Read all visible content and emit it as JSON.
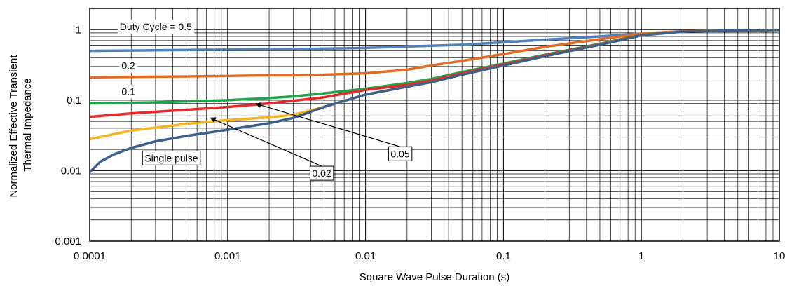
{
  "chart_data": {
    "type": "line",
    "title": "",
    "xlabel": "Square Wave Pulse Duration (s)",
    "ylabel_lines": [
      "Normalized Effective Transient",
      "Thermal Impedance"
    ],
    "xscale": "log",
    "yscale": "log",
    "xlim": [
      0.0001,
      10
    ],
    "ylim": [
      0.001,
      2
    ],
    "grid": true,
    "x_ticks": [
      {
        "value": 0.0001,
        "label": "0.0001"
      },
      {
        "value": 0.001,
        "label": "0.001"
      },
      {
        "value": 0.01,
        "label": "0.01"
      },
      {
        "value": 0.1,
        "label": "0.1"
      },
      {
        "value": 1,
        "label": "1"
      },
      {
        "value": 10,
        "label": "10"
      }
    ],
    "y_ticks": [
      {
        "value": 0.001,
        "label": "0.001"
      },
      {
        "value": 0.01,
        "label": "0.01"
      },
      {
        "value": 0.1,
        "label": "0.1"
      },
      {
        "value": 1,
        "label": "1"
      }
    ],
    "series": [
      {
        "name": "Duty Cycle = 0.5",
        "color": "#4f81bd",
        "points": [
          [
            0.0001,
            0.5
          ],
          [
            0.0003,
            0.51
          ],
          [
            0.001,
            0.52
          ],
          [
            0.003,
            0.53
          ],
          [
            0.01,
            0.55
          ],
          [
            0.03,
            0.59
          ],
          [
            0.05,
            0.61
          ],
          [
            0.1,
            0.66
          ],
          [
            0.2,
            0.72
          ],
          [
            0.5,
            0.8
          ],
          [
            1,
            0.88
          ],
          [
            2,
            0.95
          ],
          [
            5,
            0.98
          ],
          [
            10,
            0.99
          ]
        ]
      },
      {
        "name": "0.2",
        "color": "#e46c22",
        "points": [
          [
            0.0001,
            0.21
          ],
          [
            0.0003,
            0.215
          ],
          [
            0.001,
            0.22
          ],
          [
            0.002,
            0.225
          ],
          [
            0.003,
            0.225
          ],
          [
            0.005,
            0.23
          ],
          [
            0.01,
            0.24
          ],
          [
            0.02,
            0.27
          ],
          [
            0.03,
            0.31
          ],
          [
            0.05,
            0.36
          ],
          [
            0.1,
            0.45
          ],
          [
            0.2,
            0.57
          ],
          [
            0.5,
            0.73
          ],
          [
            1,
            0.88
          ],
          [
            2,
            0.95
          ],
          [
            5,
            0.98
          ],
          [
            10,
            0.99
          ]
        ]
      },
      {
        "name": "0.1",
        "color": "#1fa64a",
        "points": [
          [
            0.0001,
            0.09
          ],
          [
            0.0003,
            0.093
          ],
          [
            0.001,
            0.1
          ],
          [
            0.002,
            0.107
          ],
          [
            0.003,
            0.113
          ],
          [
            0.005,
            0.125
          ],
          [
            0.01,
            0.145
          ],
          [
            0.02,
            0.175
          ],
          [
            0.03,
            0.2
          ],
          [
            0.05,
            0.25
          ],
          [
            0.1,
            0.33
          ],
          [
            0.2,
            0.44
          ],
          [
            0.5,
            0.63
          ],
          [
            1,
            0.85
          ],
          [
            2,
            0.94
          ],
          [
            5,
            0.98
          ],
          [
            10,
            0.99
          ]
        ]
      },
      {
        "name": "0.05",
        "color": "#e52a2a",
        "points": [
          [
            0.0001,
            0.058
          ],
          [
            0.0002,
            0.065
          ],
          [
            0.0005,
            0.073
          ],
          [
            0.001,
            0.08
          ],
          [
            0.002,
            0.09
          ],
          [
            0.003,
            0.098
          ],
          [
            0.005,
            0.11
          ],
          [
            0.01,
            0.14
          ],
          [
            0.02,
            0.165
          ],
          [
            0.03,
            0.19
          ],
          [
            0.05,
            0.24
          ],
          [
            0.1,
            0.32
          ],
          [
            0.2,
            0.43
          ],
          [
            0.5,
            0.62
          ],
          [
            1,
            0.84
          ],
          [
            2,
            0.94
          ],
          [
            5,
            0.98
          ],
          [
            10,
            0.99
          ]
        ]
      },
      {
        "name": "0.02",
        "color": "#f5b320",
        "points": [
          [
            0.0001,
            0.028
          ],
          [
            0.0002,
            0.037
          ],
          [
            0.0005,
            0.046
          ],
          [
            0.001,
            0.052
          ],
          [
            0.002,
            0.057
          ],
          [
            0.003,
            0.062
          ],
          [
            0.005,
            0.08
          ],
          [
            0.01,
            0.12
          ],
          [
            0.02,
            0.155
          ],
          [
            0.03,
            0.18
          ],
          [
            0.05,
            0.23
          ],
          [
            0.1,
            0.31
          ],
          [
            0.2,
            0.42
          ],
          [
            0.5,
            0.61
          ],
          [
            1,
            0.83
          ],
          [
            2,
            0.94
          ],
          [
            5,
            0.98
          ],
          [
            10,
            0.99
          ]
        ]
      },
      {
        "name": "Single pulse",
        "color": "#3c5f8c",
        "points": [
          [
            0.0001,
            0.0095
          ],
          [
            0.00012,
            0.0135
          ],
          [
            0.00015,
            0.017
          ],
          [
            0.0002,
            0.021
          ],
          [
            0.0003,
            0.026
          ],
          [
            0.0005,
            0.031
          ],
          [
            0.001,
            0.038
          ],
          [
            0.002,
            0.047
          ],
          [
            0.003,
            0.056
          ],
          [
            0.005,
            0.08
          ],
          [
            0.01,
            0.12
          ],
          [
            0.02,
            0.155
          ],
          [
            0.03,
            0.18
          ],
          [
            0.05,
            0.23
          ],
          [
            0.1,
            0.31
          ],
          [
            0.2,
            0.42
          ],
          [
            0.5,
            0.61
          ],
          [
            1,
            0.83
          ],
          [
            2,
            0.94
          ],
          [
            5,
            0.98
          ],
          [
            10,
            0.99
          ]
        ]
      }
    ],
    "annotations": [
      {
        "text": "Duty Cycle = 0.5",
        "x": 0.000165,
        "y": 0.98,
        "boxed": false
      },
      {
        "text": "0.2",
        "x": 0.00017,
        "y": 0.275,
        "boxed": false
      },
      {
        "text": "0.1",
        "x": 0.00017,
        "y": 0.118,
        "boxed": false
      },
      {
        "text": "Single pulse",
        "x": 0.00025,
        "y": 0.0135,
        "boxed": true
      },
      {
        "text": "0.02",
        "x": 0.0041,
        "y": 0.0082,
        "boxed": true,
        "arrow_to": [
          0.00075,
          0.056
        ]
      },
      {
        "text": "0.05",
        "x": 0.0152,
        "y": 0.0155,
        "boxed": true,
        "arrow_to": [
          0.0016,
          0.089
        ]
      }
    ]
  }
}
